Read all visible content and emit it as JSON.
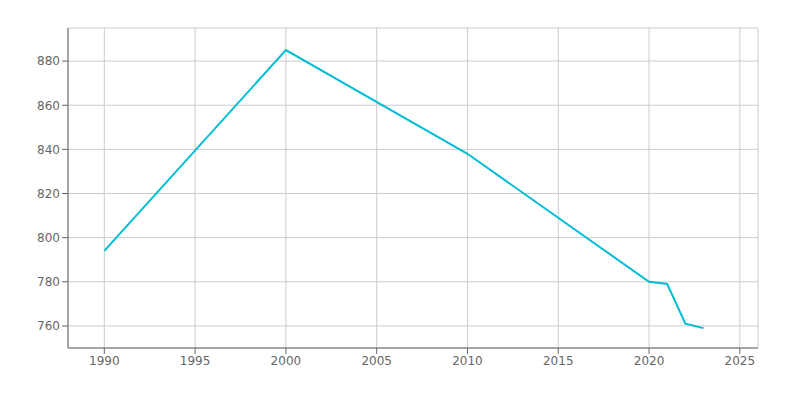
{
  "chart_data": {
    "type": "line",
    "x": [
      1990,
      2000,
      2010,
      2020,
      2021,
      2022,
      2023
    ],
    "values": [
      794,
      885,
      838,
      780,
      779,
      761,
      759
    ],
    "color": "#00BCD4",
    "xlim": [
      1988,
      2026
    ],
    "ylim": [
      750,
      895
    ],
    "xticks": [
      1990,
      1995,
      2000,
      2005,
      2010,
      2015,
      2020,
      2025
    ],
    "yticks": [
      760,
      780,
      800,
      820,
      840,
      860,
      880
    ],
    "grid": true
  }
}
